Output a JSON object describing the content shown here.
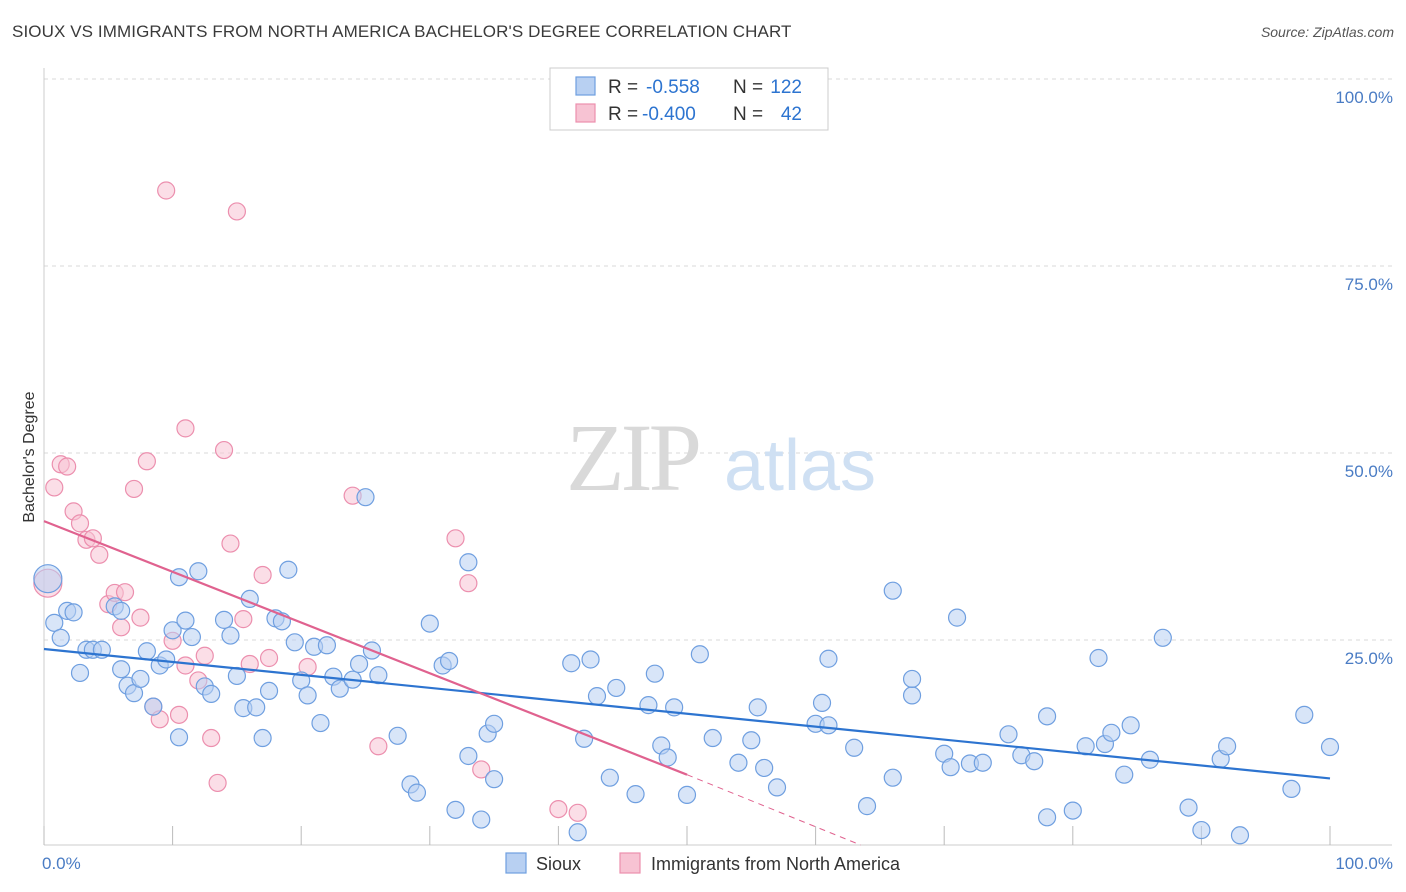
{
  "title": "SIOUX VS IMMIGRANTS FROM NORTH AMERICA BACHELOR'S DEGREE CORRELATION CHART",
  "source": "Source: ZipAtlas.com",
  "watermark": {
    "zip": "ZIP",
    "atlas": "atlas"
  },
  "colors": {
    "sioux_fill": "#b8d0f2",
    "sioux_stroke": "#6f9fe0",
    "sioux_line": "#2d74d0",
    "imm_fill": "#f7c3d3",
    "imm_stroke": "#ec8fae",
    "imm_line": "#e0628f",
    "axis_label": "#4a7cc4",
    "grid": "#d9d9d9"
  },
  "stats_legend": [
    {
      "r_label": "R =",
      "r_value": "-0.558",
      "n_label": "N =",
      "n_value": "122"
    },
    {
      "r_label": "R =",
      "r_value": "-0.400",
      "n_label": "N =",
      "n_value": "42"
    }
  ],
  "chart_data": {
    "type": "scatter",
    "title": "SIOUX VS IMMIGRANTS FROM NORTH AMERICA BACHELOR'S DEGREE CORRELATION CHART",
    "xlabel": "",
    "ylabel": "Bachelor's Degree",
    "xlim": [
      0,
      100
    ],
    "ylim": [
      0,
      100
    ],
    "x_tick_labels": [
      "0.0%",
      "100.0%"
    ],
    "y_tick_labels": [
      "100.0%",
      "75.0%",
      "50.0%",
      "25.0%"
    ],
    "y_tick_values": [
      100,
      75,
      50,
      25
    ],
    "grid": true,
    "legend_position": "bottom",
    "series": [
      {
        "name": "Sioux",
        "regression": {
          "x": [
            0,
            100
          ],
          "y": [
            26.2,
            8.9
          ]
        },
        "points": [
          [
            0.3,
            35.6
          ],
          [
            0.8,
            29.7
          ],
          [
            1.3,
            27.7
          ],
          [
            1.8,
            31.3
          ],
          [
            2.3,
            31.1
          ],
          [
            2.8,
            23.0
          ],
          [
            3.3,
            26.1
          ],
          [
            3.8,
            26.1
          ],
          [
            4.5,
            26.1
          ],
          [
            5.5,
            31.9
          ],
          [
            6.0,
            31.3
          ],
          [
            6.0,
            23.5
          ],
          [
            6.5,
            21.3
          ],
          [
            7.0,
            20.3
          ],
          [
            7.5,
            22.2
          ],
          [
            8.0,
            25.9
          ],
          [
            8.5,
            18.5
          ],
          [
            9.0,
            24.0
          ],
          [
            9.5,
            24.8
          ],
          [
            10.0,
            28.7
          ],
          [
            10.5,
            14.4
          ],
          [
            10.5,
            35.8
          ],
          [
            11.0,
            30.0
          ],
          [
            11.5,
            27.8
          ],
          [
            12.0,
            36.6
          ],
          [
            12.5,
            21.2
          ],
          [
            13.0,
            20.2
          ],
          [
            14.0,
            30.1
          ],
          [
            14.5,
            28.0
          ],
          [
            15.0,
            22.6
          ],
          [
            15.5,
            18.3
          ],
          [
            16.0,
            32.9
          ],
          [
            16.5,
            18.4
          ],
          [
            17.0,
            14.3
          ],
          [
            17.5,
            20.6
          ],
          [
            18.0,
            30.3
          ],
          [
            18.5,
            29.9
          ],
          [
            19.0,
            36.8
          ],
          [
            19.5,
            27.1
          ],
          [
            20.0,
            22.0
          ],
          [
            20.5,
            20.0
          ],
          [
            21.0,
            26.5
          ],
          [
            21.5,
            16.3
          ],
          [
            22.0,
            26.7
          ],
          [
            22.5,
            22.5
          ],
          [
            23.0,
            20.9
          ],
          [
            24.0,
            22.1
          ],
          [
            24.5,
            24.2
          ],
          [
            25.0,
            46.5
          ],
          [
            25.5,
            26.0
          ],
          [
            26.0,
            22.7
          ],
          [
            27.5,
            14.6
          ],
          [
            28.5,
            8.1
          ],
          [
            29.0,
            7.0
          ],
          [
            30.0,
            29.6
          ],
          [
            31.0,
            24.0
          ],
          [
            31.5,
            24.6
          ],
          [
            32.0,
            4.7
          ],
          [
            33.0,
            37.8
          ],
          [
            33.0,
            11.9
          ],
          [
            34.0,
            3.4
          ],
          [
            34.5,
            14.9
          ],
          [
            35.0,
            8.8
          ],
          [
            35.0,
            16.2
          ],
          [
            41.0,
            24.3
          ],
          [
            41.5,
            1.7
          ],
          [
            42.0,
            14.2
          ],
          [
            42.5,
            24.8
          ],
          [
            43.0,
            19.9
          ],
          [
            44.0,
            9.0
          ],
          [
            44.5,
            21.0
          ],
          [
            46.0,
            6.8
          ],
          [
            47.0,
            18.7
          ],
          [
            47.5,
            22.9
          ],
          [
            48.0,
            13.3
          ],
          [
            48.5,
            11.7
          ],
          [
            49.0,
            18.4
          ],
          [
            50.0,
            6.7
          ],
          [
            51.0,
            25.5
          ],
          [
            52.0,
            14.3
          ],
          [
            54.0,
            11.0
          ],
          [
            55.0,
            14.0
          ],
          [
            55.5,
            18.4
          ],
          [
            56.0,
            10.3
          ],
          [
            57.0,
            7.7
          ],
          [
            60.0,
            16.2
          ],
          [
            60.5,
            19.0
          ],
          [
            61.0,
            24.9
          ],
          [
            63.0,
            13.0
          ],
          [
            64.0,
            5.2
          ],
          [
            66.0,
            34.0
          ],
          [
            66.0,
            9.0
          ],
          [
            67.5,
            20.0
          ],
          [
            67.5,
            22.2
          ],
          [
            70.0,
            12.2
          ],
          [
            70.5,
            10.4
          ],
          [
            71.0,
            30.4
          ],
          [
            72.0,
            10.9
          ],
          [
            73.0,
            11.0
          ],
          [
            75.0,
            14.8
          ],
          [
            76.0,
            12.0
          ],
          [
            77.0,
            11.2
          ],
          [
            78.0,
            3.7
          ],
          [
            78.0,
            17.2
          ],
          [
            80.0,
            4.6
          ],
          [
            81.0,
            13.2
          ],
          [
            82.0,
            25.0
          ],
          [
            82.5,
            13.5
          ],
          [
            83.0,
            15.0
          ],
          [
            84.0,
            9.4
          ],
          [
            84.5,
            16.0
          ],
          [
            86.0,
            11.4
          ],
          [
            87.0,
            27.7
          ],
          [
            89.0,
            5.0
          ],
          [
            90.0,
            2.0
          ],
          [
            91.5,
            11.5
          ],
          [
            92.0,
            13.2
          ],
          [
            93.0,
            1.3
          ],
          [
            97.0,
            7.5
          ],
          [
            98.0,
            17.4
          ],
          [
            100.0,
            13.1
          ],
          [
            61.0,
            16.0
          ]
        ]
      },
      {
        "name": "Immigrants from North America",
        "regression": {
          "x": [
            0,
            50
          ],
          "y": [
            43.3,
            9.4
          ]
        },
        "regression_extension": {
          "x": [
            50,
            63.5
          ],
          "y": [
            9.4,
            0
          ]
        },
        "points": [
          [
            0.3,
            35.0
          ],
          [
            0.8,
            47.8
          ],
          [
            1.3,
            50.9
          ],
          [
            1.8,
            50.6
          ],
          [
            2.3,
            44.6
          ],
          [
            2.8,
            43.0
          ],
          [
            3.3,
            40.8
          ],
          [
            3.8,
            41.0
          ],
          [
            4.3,
            38.8
          ],
          [
            5.0,
            32.2
          ],
          [
            5.5,
            33.7
          ],
          [
            6.0,
            29.1
          ],
          [
            6.3,
            33.8
          ],
          [
            7.0,
            47.6
          ],
          [
            7.5,
            30.4
          ],
          [
            8.0,
            51.3
          ],
          [
            8.5,
            18.5
          ],
          [
            9.0,
            16.8
          ],
          [
            9.5,
            87.5
          ],
          [
            10.0,
            27.3
          ],
          [
            10.5,
            17.4
          ],
          [
            11.0,
            24.0
          ],
          [
            11.0,
            55.7
          ],
          [
            12.0,
            22.0
          ],
          [
            12.5,
            25.3
          ],
          [
            13.0,
            14.3
          ],
          [
            13.5,
            8.3
          ],
          [
            14.0,
            52.8
          ],
          [
            14.5,
            40.3
          ],
          [
            15.0,
            84.7
          ],
          [
            15.5,
            30.2
          ],
          [
            16.0,
            24.2
          ],
          [
            17.0,
            36.1
          ],
          [
            17.5,
            25.0
          ],
          [
            20.5,
            23.8
          ],
          [
            24.0,
            46.7
          ],
          [
            26.0,
            13.2
          ],
          [
            32.0,
            41.0
          ],
          [
            33.0,
            35.0
          ],
          [
            34.0,
            10.1
          ],
          [
            40.0,
            4.8
          ],
          [
            41.5,
            4.3
          ]
        ]
      }
    ]
  },
  "bottom_legend": [
    {
      "label": "Sioux"
    },
    {
      "label": "Immigrants from North America"
    }
  ]
}
